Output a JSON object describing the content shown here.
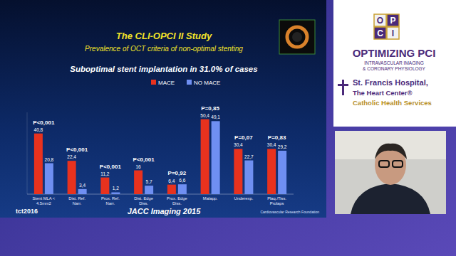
{
  "chart_data": {
    "type": "bar",
    "title": "The CLI-OPCI II Study",
    "subtitle": "Prevalence of OCT criteria of non-optimal stenting",
    "categories": [
      "Stent MLA < 4.5mm2",
      "Dist. Ref. Narr.",
      "Prox. Ref. Narr.",
      "Dist. Edge Diss.",
      "Prox. Edge Diss.",
      "Malapp.",
      "Underexp.",
      "Plaq./Tiss. Prolaps"
    ],
    "series": [
      {
        "name": "MACE",
        "color": "#e8321e",
        "values": [
          40.8,
          22.4,
          11.2,
          16,
          6.4,
          50.4,
          30.4,
          30.4
        ],
        "value_labels": [
          "40,8",
          "22,4",
          "11,2",
          "16",
          "6,4",
          "50,4",
          "30,4",
          "30,4"
        ]
      },
      {
        "name": "NO MACE",
        "color": "#6f8ff2",
        "values": [
          20.8,
          3.4,
          1.2,
          5.7,
          6.6,
          49.1,
          22.7,
          29.2
        ],
        "value_labels": [
          "20,8",
          "3,4",
          "1,2",
          "5,7",
          "6,6",
          "49,1",
          "22,7",
          "29,2"
        ]
      }
    ],
    "annotations": [
      "P<0,001",
      "P<0,001",
      "P<0,001",
      "P<0,001",
      "P=0,92",
      "P=0,85",
      "P=0,07",
      "P=0,83"
    ],
    "ylim": [
      0,
      55
    ],
    "data_labels": true,
    "tick_labels": false,
    "grid": false,
    "legend": "top"
  },
  "slide": {
    "heading": "Suboptimal stent implantation in 31.0% of cases",
    "citation": "JACC Imaging 2015",
    "meeting": "tct2016",
    "foundation": "Cardiovascular Research Foundation"
  },
  "sidebar": {
    "logo_letters": [
      "O",
      "P",
      "C",
      "I"
    ],
    "program": "OPTIMIZING PCI",
    "program_subtitle": [
      "INTRAVASCULAR IMAGING",
      "& CORONARY PHYSIOLOGY"
    ],
    "hospital": [
      "St. Francis Hospital,",
      "The Heart Center®",
      "Catholic Health Services"
    ]
  }
}
